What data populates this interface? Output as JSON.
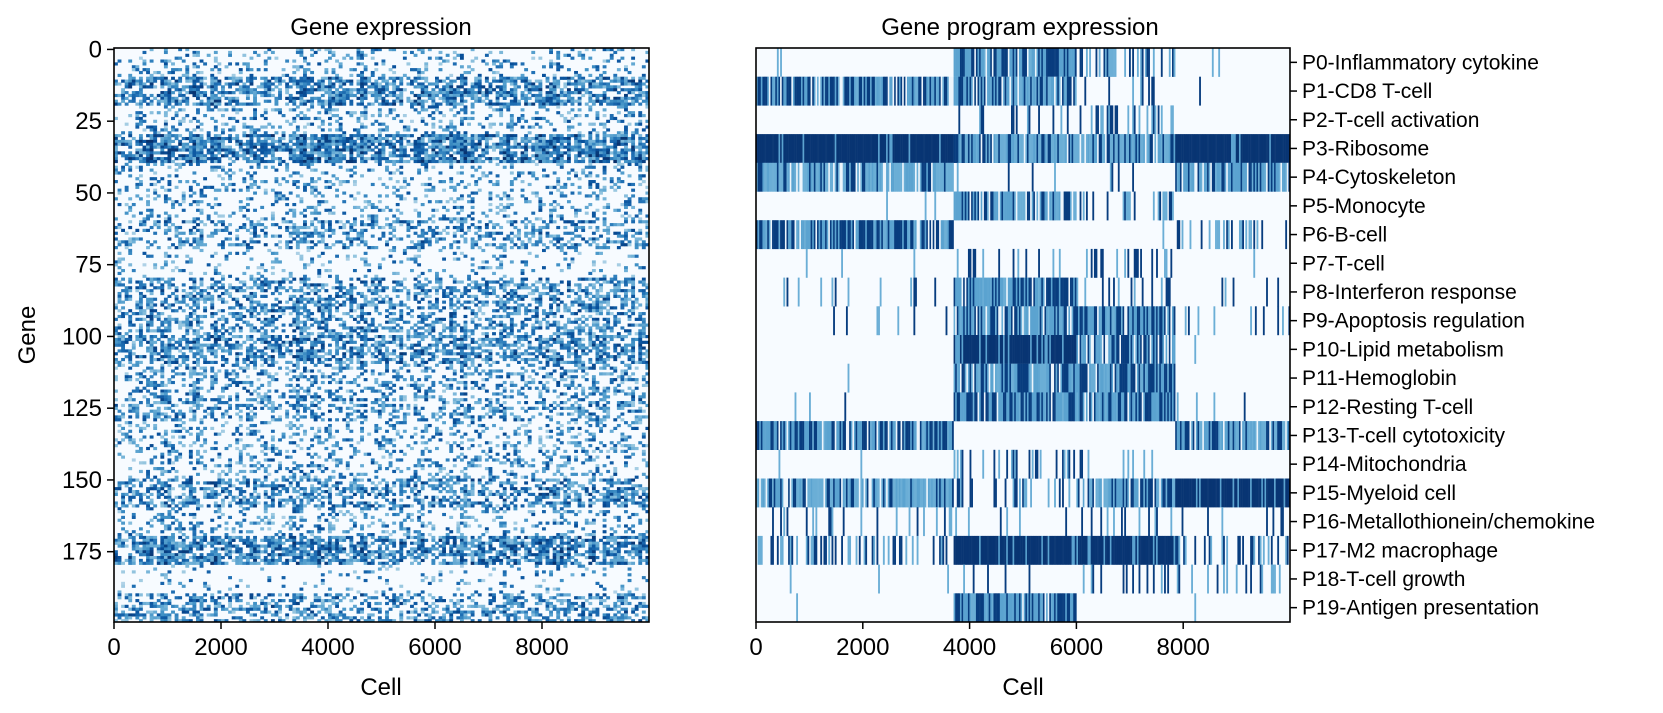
{
  "chart_data": [
    {
      "type": "heatmap",
      "title": "Gene expression",
      "xlabel": "Cell",
      "ylabel": "Gene",
      "xlim": [
        0,
        10000
      ],
      "ylim": [
        200,
        0
      ],
      "xticks": [
        0,
        2000,
        4000,
        6000,
        8000
      ],
      "yticks": [
        0,
        25,
        50,
        75,
        100,
        125,
        150,
        175
      ],
      "colormap": "Blues",
      "rows": 200,
      "band_density": [
        {
          "genes": [
            0,
            10
          ],
          "level": 0.25
        },
        {
          "genes": [
            10,
            20
          ],
          "level": 0.75
        },
        {
          "genes": [
            20,
            30
          ],
          "level": 0.3
        },
        {
          "genes": [
            30,
            40
          ],
          "level": 0.9
        },
        {
          "genes": [
            40,
            60
          ],
          "level": 0.25
        },
        {
          "genes": [
            60,
            70
          ],
          "level": 0.45
        },
        {
          "genes": [
            70,
            80
          ],
          "level": 0.15
        },
        {
          "genes": [
            80,
            100
          ],
          "level": 0.55
        },
        {
          "genes": [
            100,
            110
          ],
          "level": 0.7
        },
        {
          "genes": [
            110,
            120
          ],
          "level": 0.4
        },
        {
          "genes": [
            120,
            130
          ],
          "level": 0.45
        },
        {
          "genes": [
            130,
            150
          ],
          "level": 0.3
        },
        {
          "genes": [
            150,
            160
          ],
          "level": 0.6
        },
        {
          "genes": [
            160,
            170
          ],
          "level": 0.3
        },
        {
          "genes": [
            170,
            180
          ],
          "level": 0.8
        },
        {
          "genes": [
            180,
            190
          ],
          "level": 0.1
        },
        {
          "genes": [
            190,
            200
          ],
          "level": 0.55
        }
      ]
    },
    {
      "type": "heatmap",
      "title": "Gene program expression",
      "xlabel": "Cell",
      "ylabel": "",
      "xlim": [
        0,
        10000
      ],
      "xticks": [
        0,
        2000,
        4000,
        6000,
        8000
      ],
      "colormap": "Blues",
      "cell_groups": [
        {
          "cells": [
            0,
            3700
          ]
        },
        {
          "cells": [
            3700,
            6000
          ]
        },
        {
          "cells": [
            6000,
            7850
          ]
        },
        {
          "cells": [
            7850,
            10000
          ]
        }
      ],
      "programs": [
        {
          "label": "P0-Inflammatory cytokine",
          "levels": [
            0.0,
            0.85,
            0.35,
            0.0
          ]
        },
        {
          "label": "P1-CD8 T-cell",
          "levels": [
            0.75,
            0.55,
            0.1,
            0.05
          ]
        },
        {
          "label": "P2-T-cell activation",
          "levels": [
            0.0,
            0.15,
            0.35,
            0.0
          ]
        },
        {
          "label": "P3-Ribosome",
          "levels": [
            0.92,
            0.5,
            0.5,
            0.92
          ]
        },
        {
          "label": "P4-Cytoskeleton",
          "levels": [
            0.45,
            0.05,
            0.05,
            0.7
          ]
        },
        {
          "label": "P5-Monocyte",
          "levels": [
            0.0,
            0.6,
            0.25,
            0.0
          ]
        },
        {
          "label": "P6-B-cell",
          "levels": [
            0.8,
            0.0,
            0.0,
            0.4
          ]
        },
        {
          "label": "P7-T-cell",
          "levels": [
            0.0,
            0.2,
            0.25,
            0.0
          ]
        },
        {
          "label": "P8-Interferon response",
          "levels": [
            0.1,
            0.8,
            0.25,
            0.05
          ]
        },
        {
          "label": "P9-Apoptosis regulation",
          "levels": [
            0.05,
            0.6,
            0.75,
            0.05
          ]
        },
        {
          "label": "P10-Lipid metabolism",
          "levels": [
            0.0,
            0.9,
            0.85,
            0.0
          ]
        },
        {
          "label": "P11-Hemoglobin",
          "levels": [
            0.0,
            0.6,
            0.6,
            0.0
          ]
        },
        {
          "label": "P12-Resting T-cell",
          "levels": [
            0.05,
            0.8,
            0.8,
            0.05
          ]
        },
        {
          "label": "P13-T-cell cytotoxicity",
          "levels": [
            0.85,
            0.0,
            0.0,
            0.6
          ]
        },
        {
          "label": "P14-Mitochondria",
          "levels": [
            0.0,
            0.35,
            0.2,
            0.0
          ]
        },
        {
          "label": "P15-Myeloid cell",
          "levels": [
            0.5,
            0.3,
            0.55,
            0.95
          ]
        },
        {
          "label": "P16-Metallothionein/chemokine",
          "levels": [
            0.15,
            0.1,
            0.1,
            0.1
          ]
        },
        {
          "label": "P17-M2 macrophage",
          "levels": [
            0.35,
            0.95,
            0.95,
            0.35
          ]
        },
        {
          "label": "P18-T-cell growth",
          "levels": [
            0.0,
            0.05,
            0.3,
            0.2
          ]
        },
        {
          "label": "P19-Antigen presentation",
          "levels": [
            0.0,
            0.85,
            0.0,
            0.0
          ]
        }
      ]
    }
  ]
}
